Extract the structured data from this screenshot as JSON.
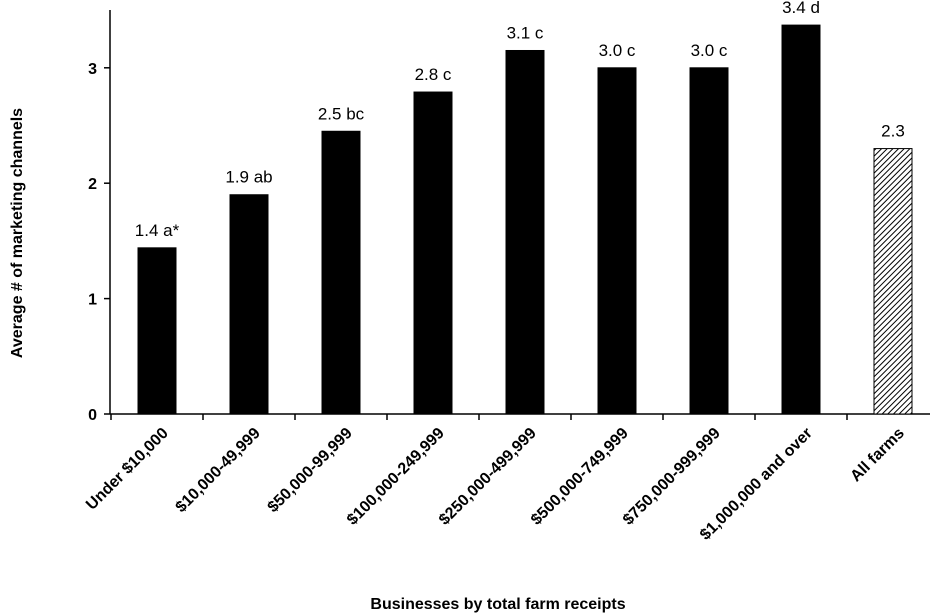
{
  "chart_data": {
    "type": "bar",
    "xlabel": "Businesses by total farm receipts",
    "ylabel": "Average # of marketing channels",
    "ylim": [
      0,
      3.5
    ],
    "yticks": [
      0,
      1,
      2,
      3
    ],
    "grid": false,
    "categories": [
      "Under $10,000",
      "$10,000-49,999",
      "$50,000-99,999",
      "$100,000-249,999",
      "$250,000-499,999",
      "$500,000-749,999",
      "$750,000-999,999",
      "$1,000,000 and over",
      "All farms"
    ],
    "values": [
      1.44,
      1.9,
      2.45,
      2.79,
      3.15,
      3.0,
      3.0,
      3.37,
      2.3
    ],
    "data_labels": [
      "1.4 a*",
      "1.9 ab",
      "2.5 bc",
      "2.8 c",
      "3.1 c",
      "3.0 c",
      "3.0 c",
      "3.4 d",
      "2.3"
    ],
    "bar_styles": [
      "solid",
      "solid",
      "solid",
      "solid",
      "solid",
      "solid",
      "solid",
      "solid",
      "hatched"
    ],
    "colors": {
      "bar": "#000000",
      "hatch": "#000000",
      "axis": "#000000"
    }
  }
}
